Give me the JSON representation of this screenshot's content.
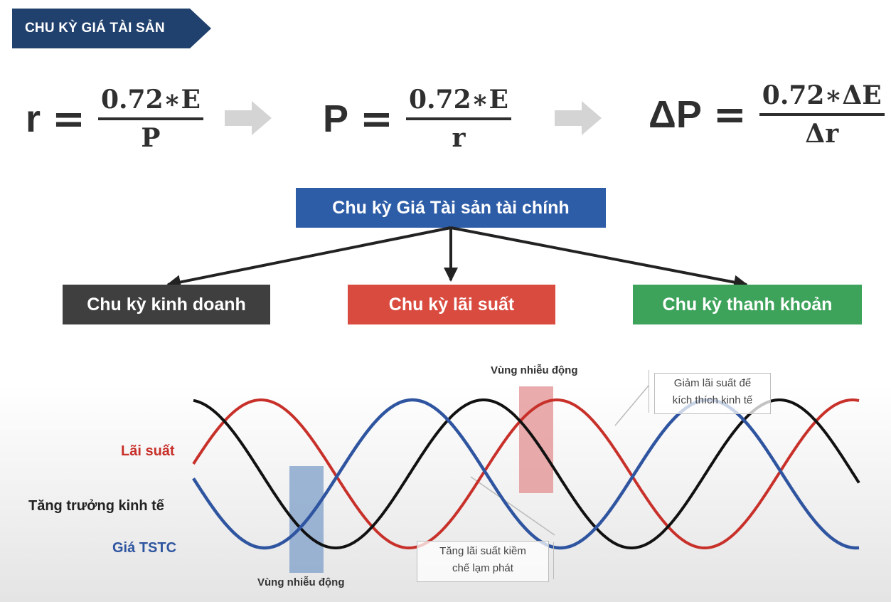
{
  "header": {
    "title": "CHU KỲ GIÁ TÀI SẢN"
  },
  "formulas": [
    {
      "lhs": "r",
      "eq": "=",
      "numerator": "0.72∗E",
      "denominator": "P"
    },
    {
      "lhs": "P",
      "eq": "=",
      "numerator": "0.72∗E",
      "denominator": "r"
    },
    {
      "lhs": "ΔP",
      "eq": "=",
      "numerator": "0.72∗ΔE",
      "denominator": "Δr"
    }
  ],
  "tree": {
    "root": "Chu kỳ Giá Tài sản tài chính",
    "children": [
      {
        "label": "Chu kỳ kinh doanh",
        "color": "#3f3f3f"
      },
      {
        "label": "Chu kỳ lãi suất",
        "color": "#d94a3f"
      },
      {
        "label": "Chu kỳ thanh khoản",
        "color": "#3ea35a"
      }
    ],
    "root_color": "#2e5da8"
  },
  "chart": {
    "series": [
      {
        "name": "Lãi suất",
        "color": "#c8302a"
      },
      {
        "name": "Tăng trưởng kinh tế",
        "color": "#111111"
      },
      {
        "name": "Giá TSTC",
        "color": "#2f55a0"
      }
    ],
    "zones": [
      {
        "caption": "Vùng nhiễu động",
        "color": "#7e9fc9"
      },
      {
        "caption": "Vùng nhiễu động",
        "color": "#e28f8f"
      }
    ],
    "notes": {
      "top": "Giảm lãi suất để kích thích kinh tế",
      "top_line1": "Giảm lãi suất để",
      "top_line2": "kích thích kinh tế",
      "bottom_line1": "Tăng lãi suất kiềm",
      "bottom_line2": "chế lạm phát"
    }
  }
}
